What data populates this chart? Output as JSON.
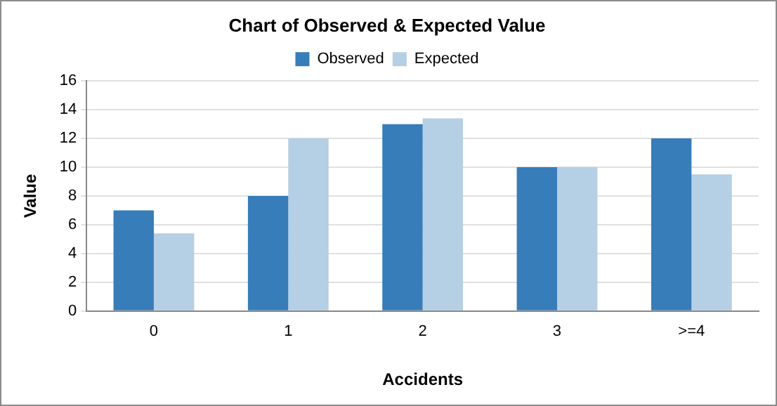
{
  "chart_data": {
    "type": "bar",
    "title": "Chart of Observed & Expected Value",
    "xlabel": "Accidents",
    "ylabel": "Value",
    "categories": [
      "0",
      "1",
      "2",
      "3",
      ">=4"
    ],
    "series": [
      {
        "name": "Observed",
        "color": "#367dba",
        "values": [
          7,
          8,
          13,
          10,
          12
        ]
      },
      {
        "name": "Expected",
        "color": "#b5cfe5",
        "values": [
          5.4,
          12,
          13.4,
          10,
          9.5
        ]
      }
    ],
    "ylim": [
      0,
      16
    ],
    "yticks": [
      0,
      2,
      4,
      6,
      8,
      10,
      12,
      14,
      16
    ],
    "grid": "y",
    "legend": "top"
  }
}
